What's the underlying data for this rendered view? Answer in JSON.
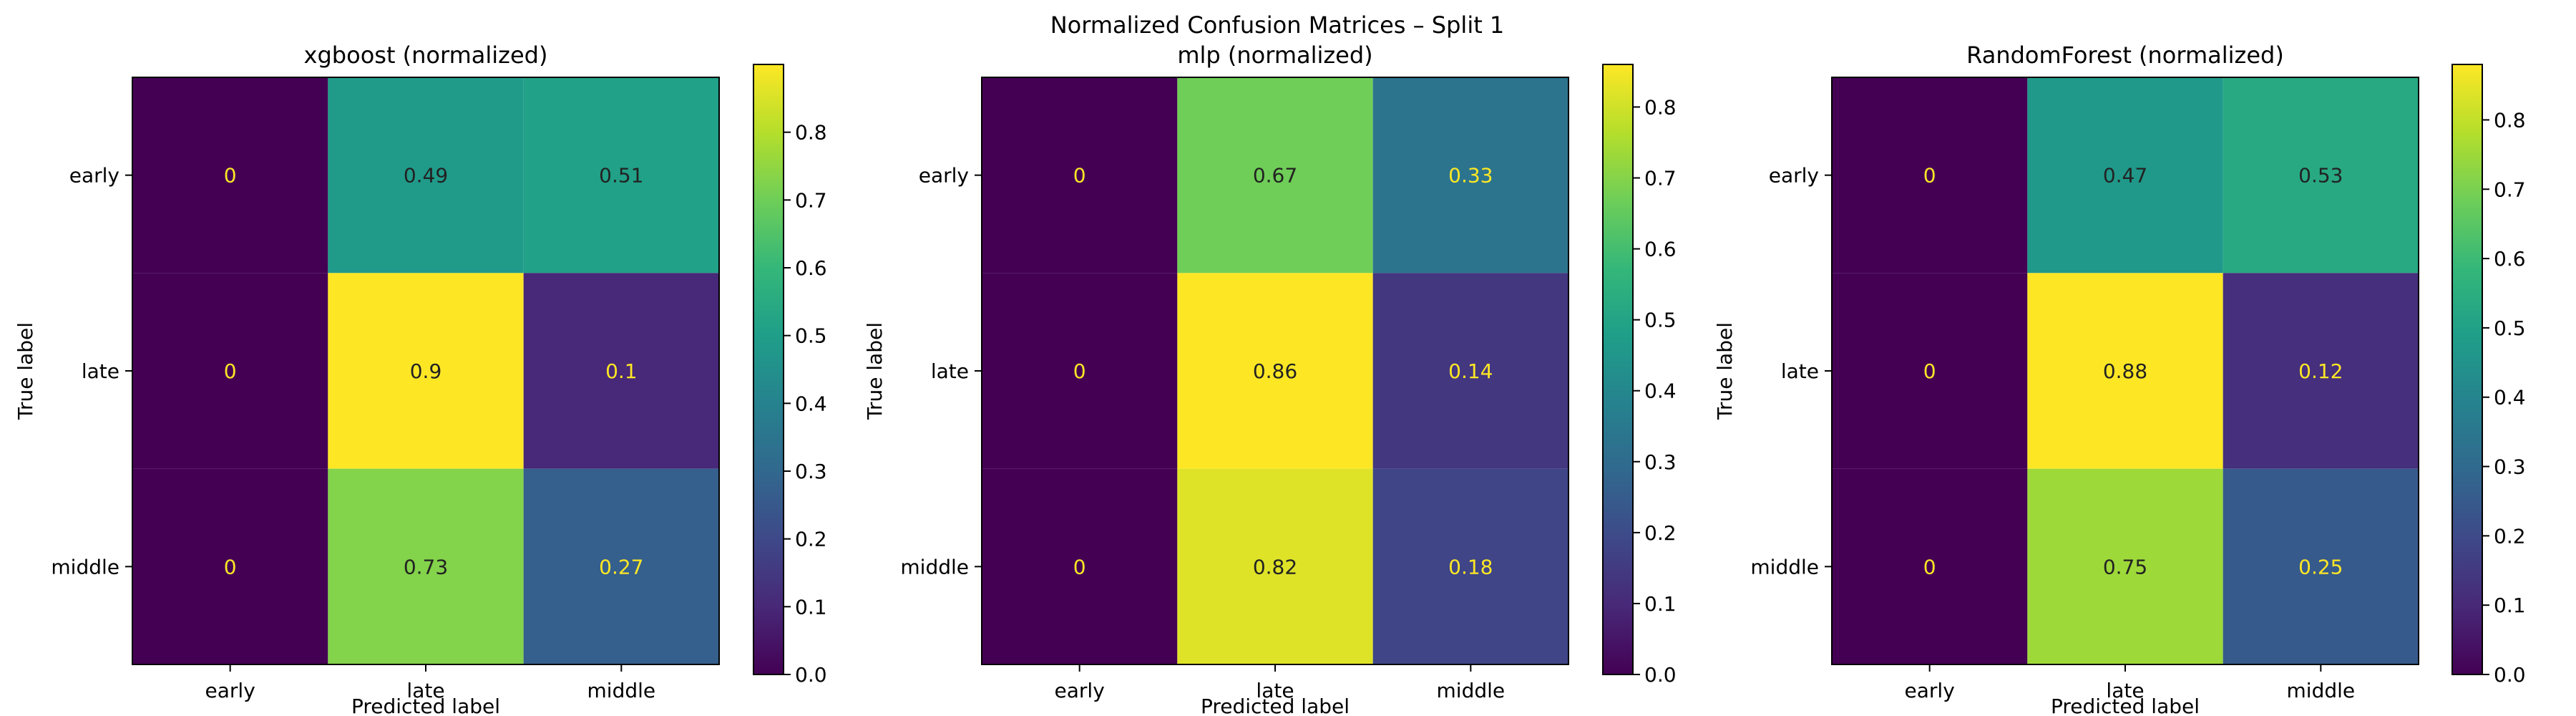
{
  "title": "Normalized Confusion Matrices – Split 1",
  "chart_data": [
    {
      "type": "heatmap",
      "title": "xgboost (normalized)",
      "xlabel": "Predicted label",
      "ylabel": "True label",
      "x_categories": [
        "early",
        "late",
        "middle"
      ],
      "y_categories": [
        "early",
        "late",
        "middle"
      ],
      "values": [
        [
          0,
          0.49,
          0.51
        ],
        [
          0,
          0.9,
          0.1
        ],
        [
          0,
          0.73,
          0.27
        ]
      ],
      "value_labels": [
        [
          "0",
          "0.49",
          "0.51"
        ],
        [
          "0",
          "0.9",
          "0.1"
        ],
        [
          "0",
          "0.73",
          "0.27"
        ]
      ],
      "colorbar": {
        "range": [
          0,
          0.9
        ],
        "ticks": [
          0.0,
          0.1,
          0.2,
          0.3,
          0.4,
          0.5,
          0.6,
          0.7,
          0.8
        ],
        "tick_labels": [
          "0.0",
          "0.1",
          "0.2",
          "0.3",
          "0.4",
          "0.5",
          "0.6",
          "0.7",
          "0.8"
        ]
      }
    },
    {
      "type": "heatmap",
      "title": "mlp (normalized)",
      "xlabel": "Predicted label",
      "ylabel": "True label",
      "x_categories": [
        "early",
        "late",
        "middle"
      ],
      "y_categories": [
        "early",
        "late",
        "middle"
      ],
      "values": [
        [
          0,
          0.67,
          0.33
        ],
        [
          0,
          0.86,
          0.14
        ],
        [
          0,
          0.82,
          0.18
        ]
      ],
      "value_labels": [
        [
          "0",
          "0.67",
          "0.33"
        ],
        [
          "0",
          "0.86",
          "0.14"
        ],
        [
          "0",
          "0.82",
          "0.18"
        ]
      ],
      "colorbar": {
        "range": [
          0,
          0.86
        ],
        "ticks": [
          0.0,
          0.1,
          0.2,
          0.3,
          0.4,
          0.5,
          0.6,
          0.7,
          0.8
        ],
        "tick_labels": [
          "0.0",
          "0.1",
          "0.2",
          "0.3",
          "0.4",
          "0.5",
          "0.6",
          "0.7",
          "0.8"
        ]
      }
    },
    {
      "type": "heatmap",
      "title": "RandomForest (normalized)",
      "xlabel": "Predicted label",
      "ylabel": "True label",
      "x_categories": [
        "early",
        "late",
        "middle"
      ],
      "y_categories": [
        "early",
        "late",
        "middle"
      ],
      "values": [
        [
          0,
          0.47,
          0.53
        ],
        [
          0,
          0.88,
          0.12
        ],
        [
          0,
          0.75,
          0.25
        ]
      ],
      "value_labels": [
        [
          "0",
          "0.47",
          "0.53"
        ],
        [
          "0",
          "0.88",
          "0.12"
        ],
        [
          "0",
          "0.75",
          "0.25"
        ]
      ],
      "colorbar": {
        "range": [
          0,
          0.88
        ],
        "ticks": [
          0.0,
          0.1,
          0.2,
          0.3,
          0.4,
          0.5,
          0.6,
          0.7,
          0.8
        ],
        "tick_labels": [
          "0.0",
          "0.1",
          "0.2",
          "0.3",
          "0.4",
          "0.5",
          "0.6",
          "0.7",
          "0.8"
        ]
      }
    }
  ],
  "colormap": [
    "#440154",
    "#482878",
    "#3e4989",
    "#31688e",
    "#26828e",
    "#1f9e89",
    "#35b779",
    "#6ece58",
    "#b5de2b",
    "#fde725"
  ],
  "text_colors": {
    "on_dark": "#fde725",
    "on_light": "#222222"
  }
}
